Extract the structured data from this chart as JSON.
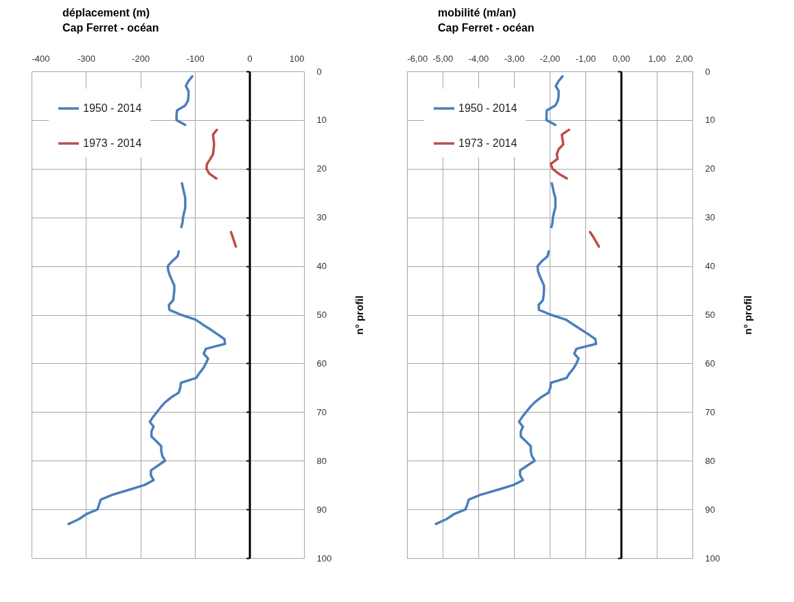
{
  "chart_data": [
    {
      "type": "line",
      "title": "déplacement (m)",
      "subtitle": "Cap Ferret - océan",
      "ylabel": "n° profil",
      "orientation": "horizontal",
      "xlim": [
        -400,
        100
      ],
      "xticks": [
        -400,
        -300,
        -200,
        -100,
        0,
        100
      ],
      "ylim": [
        100,
        0
      ],
      "yticks": [
        0,
        10,
        20,
        30,
        40,
        50,
        60,
        70,
        80,
        90,
        100
      ],
      "grid": true,
      "legend": "top left",
      "x": [
        1,
        2,
        3,
        4,
        5,
        6,
        7,
        8,
        9,
        10,
        11,
        12,
        13,
        14,
        15,
        16,
        17,
        18,
        19,
        20,
        21,
        22,
        23,
        24,
        25,
        26,
        27,
        28,
        29,
        30,
        31,
        32,
        33,
        34,
        35,
        36,
        37,
        38,
        39,
        40,
        41,
        42,
        43,
        44,
        45,
        46,
        47,
        48,
        49,
        50,
        51,
        52,
        53,
        54,
        55,
        56,
        57,
        58,
        59,
        60,
        61,
        62,
        63,
        64,
        65,
        66,
        67,
        68,
        69,
        70,
        71,
        72,
        73,
        74,
        75,
        76,
        77,
        78,
        79,
        80,
        81,
        82,
        83,
        84,
        85,
        86,
        87,
        88,
        89,
        90,
        91,
        92,
        93
      ],
      "series": [
        {
          "name": "1950 - 2014",
          "color": "#4a7ebb",
          "values": [
            -105,
            -112,
            -117,
            -112,
            -112,
            -113,
            -118,
            -133,
            -134,
            -134,
            -118,
            null,
            null,
            null,
            null,
            null,
            null,
            null,
            null,
            null,
            null,
            null,
            -124,
            -122,
            -120,
            -118,
            -118,
            -118,
            -120,
            -122,
            -123,
            -125,
            null,
            null,
            null,
            null,
            -130,
            -132,
            -142,
            -150,
            -149,
            -146,
            -142,
            -138,
            -138,
            -139,
            -140,
            -148,
            -147,
            -126,
            -99,
            -86,
            -72,
            -59,
            -46,
            -45,
            -80,
            -84,
            -76,
            -80,
            -85,
            -92,
            -98,
            -126,
            -127,
            -130,
            -144,
            -155,
            -163,
            -170,
            -177,
            -183,
            -176,
            -180,
            -180,
            -171,
            -162,
            -162,
            -160,
            -155,
            -168,
            -181,
            -181,
            -176,
            -193,
            -222,
            -252,
            -273,
            -276,
            -279,
            -300,
            -313,
            -332
          ]
        },
        {
          "name": "1973 - 2014",
          "color": "#be4b48",
          "values": [
            null,
            null,
            null,
            null,
            null,
            null,
            null,
            null,
            null,
            null,
            null,
            -60,
            -67,
            -66,
            -65,
            -66,
            -67,
            -72,
            -78,
            -79,
            -74,
            -61,
            null,
            null,
            null,
            null,
            null,
            null,
            null,
            null,
            null,
            null,
            -34,
            -31,
            -28,
            -25,
            null,
            null,
            null,
            null,
            null,
            null,
            null,
            null,
            null,
            null,
            null,
            null,
            null,
            null,
            null,
            null,
            null,
            null,
            null,
            null,
            null,
            null,
            null,
            null,
            null,
            null,
            null,
            null,
            null,
            null,
            null,
            null,
            null,
            null,
            null,
            null,
            null,
            null,
            null,
            null,
            null,
            null,
            null,
            null,
            null,
            null,
            null,
            null,
            null,
            null,
            null,
            null,
            null,
            null,
            null,
            null,
            null
          ]
        }
      ]
    },
    {
      "type": "line",
      "title": "mobilité (m/an)",
      "subtitle": "Cap Ferret - océan",
      "ylabel": "n° profil",
      "orientation": "horizontal",
      "xlim": [
        -6,
        2
      ],
      "xticks": [
        {
          "value": -6,
          "label": "-6,00"
        },
        {
          "value": -5,
          "label": "-5,00"
        },
        {
          "value": -4,
          "label": "-4,00"
        },
        {
          "value": -3,
          "label": "-3,00"
        },
        {
          "value": -2,
          "label": "-2,00"
        },
        {
          "value": -1,
          "label": "-1,00"
        },
        {
          "value": 0,
          "label": "0,00"
        },
        {
          "value": 1,
          "label": "1,00"
        },
        {
          "value": 2,
          "label": "2,00"
        }
      ],
      "ylim": [
        100,
        0
      ],
      "yticks": [
        0,
        10,
        20,
        30,
        40,
        50,
        60,
        70,
        80,
        90,
        100
      ],
      "grid": true,
      "legend": "top left",
      "x": [
        1,
        2,
        3,
        4,
        5,
        6,
        7,
        8,
        9,
        10,
        11,
        12,
        13,
        14,
        15,
        16,
        17,
        18,
        19,
        20,
        21,
        22,
        23,
        24,
        25,
        26,
        27,
        28,
        29,
        30,
        31,
        32,
        33,
        34,
        35,
        36,
        37,
        38,
        39,
        40,
        41,
        42,
        43,
        44,
        45,
        46,
        47,
        48,
        49,
        50,
        51,
        52,
        53,
        54,
        55,
        56,
        57,
        58,
        59,
        60,
        61,
        62,
        63,
        64,
        65,
        66,
        67,
        68,
        69,
        70,
        71,
        72,
        73,
        74,
        75,
        76,
        77,
        78,
        79,
        80,
        81,
        82,
        83,
        84,
        85,
        86,
        87,
        88,
        89,
        90,
        91,
        92,
        93
      ],
      "series": [
        {
          "name": "1950 - 2014",
          "color": "#4a7ebb",
          "values": [
            -1.64,
            -1.75,
            -1.83,
            -1.75,
            -1.75,
            -1.77,
            -1.84,
            -2.08,
            -2.09,
            -2.09,
            -1.84,
            null,
            null,
            null,
            null,
            null,
            null,
            null,
            null,
            null,
            null,
            null,
            -1.94,
            -1.91,
            -1.88,
            -1.84,
            -1.84,
            -1.84,
            -1.88,
            -1.91,
            -1.92,
            -1.95,
            null,
            null,
            null,
            null,
            -2.03,
            -2.06,
            -2.22,
            -2.34,
            -2.33,
            -2.28,
            -2.22,
            -2.16,
            -2.16,
            -2.17,
            -2.19,
            -2.31,
            -2.3,
            -1.97,
            -1.55,
            -1.34,
            -1.13,
            -0.92,
            -0.72,
            -0.7,
            -1.25,
            -1.31,
            -1.19,
            -1.25,
            -1.33,
            -1.44,
            -1.53,
            -1.97,
            -1.98,
            -2.03,
            -2.25,
            -2.42,
            -2.55,
            -2.66,
            -2.77,
            -2.86,
            -2.75,
            -2.81,
            -2.81,
            -2.67,
            -2.53,
            -2.53,
            -2.5,
            -2.42,
            -2.63,
            -2.83,
            -2.83,
            -2.75,
            -3.02,
            -3.47,
            -3.94,
            -4.27,
            -4.31,
            -4.36,
            -4.69,
            -4.89,
            -5.19
          ]
        },
        {
          "name": "1973 - 2014",
          "color": "#be4b48",
          "values": [
            null,
            null,
            null,
            null,
            null,
            null,
            null,
            null,
            null,
            null,
            null,
            -1.46,
            -1.66,
            -1.64,
            -1.62,
            -1.75,
            -1.8,
            -1.78,
            -1.97,
            -1.92,
            -1.75,
            -1.52,
            null,
            null,
            null,
            null,
            null,
            null,
            null,
            null,
            null,
            null,
            -0.87,
            -0.78,
            -0.7,
            -0.62,
            null,
            null,
            null,
            null,
            null,
            null,
            null,
            null,
            null,
            null,
            null,
            null,
            null,
            null,
            null,
            null,
            null,
            null,
            null,
            null,
            null,
            null,
            null,
            null,
            null,
            null,
            null,
            null,
            null,
            null,
            null,
            null,
            null,
            null,
            null,
            null,
            null,
            null,
            null,
            null,
            null,
            null,
            null,
            null,
            null,
            null,
            null,
            null,
            null,
            null,
            null,
            null,
            null,
            null,
            null,
            null,
            null
          ]
        }
      ]
    }
  ]
}
